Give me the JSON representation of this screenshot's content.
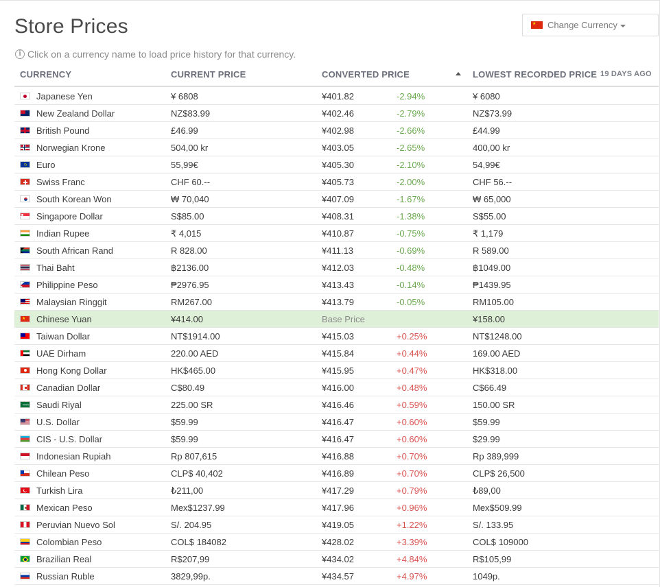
{
  "page": {
    "title": "Store Prices",
    "hint": "Click on a currency name to load price history for that currency.",
    "change_currency_label": "Change Currency",
    "info_icon": "info-icon",
    "caret_icon": "chevron-down-icon"
  },
  "table": {
    "headers": {
      "currency": "CURRENCY",
      "current_price": "CURRENT PRICE",
      "converted_price": "CONVERTED PRICE",
      "lowest_recorded": "LOWEST RECORDED PRICE",
      "days_ago": "19 DAYS AGO"
    },
    "rows": [
      {
        "name": "Japanese Yen",
        "flag": "jp",
        "price": "¥ 6808",
        "converted": "¥401.82",
        "pct": "-2.94%",
        "trend": "neg",
        "lowest": "¥ 6080"
      },
      {
        "name": "New Zealand Dollar",
        "flag": "nz",
        "price": "NZ$83.99",
        "converted": "¥402.46",
        "pct": "-2.79%",
        "trend": "neg",
        "lowest": "NZ$73.99"
      },
      {
        "name": "British Pound",
        "flag": "gb",
        "price": "£46.99",
        "converted": "¥402.98",
        "pct": "-2.66%",
        "trend": "neg",
        "lowest": "£44.99"
      },
      {
        "name": "Norwegian Krone",
        "flag": "no",
        "price": "504,00 kr",
        "converted": "¥403.05",
        "pct": "-2.65%",
        "trend": "neg",
        "lowest": "400,00 kr"
      },
      {
        "name": "Euro",
        "flag": "eu",
        "price": "55,99€",
        "converted": "¥405.30",
        "pct": "-2.10%",
        "trend": "neg",
        "lowest": "54,99€"
      },
      {
        "name": "Swiss Franc",
        "flag": "ch",
        "price": "CHF 60.--",
        "converted": "¥405.73",
        "pct": "-2.00%",
        "trend": "neg",
        "lowest": "CHF 56.--"
      },
      {
        "name": "South Korean Won",
        "flag": "kr",
        "price": "₩ 70,040",
        "converted": "¥407.09",
        "pct": "-1.67%",
        "trend": "neg",
        "lowest": "₩ 65,000"
      },
      {
        "name": "Singapore Dollar",
        "flag": "sg",
        "price": "S$85.00",
        "converted": "¥408.31",
        "pct": "-1.38%",
        "trend": "neg",
        "lowest": "S$55.00"
      },
      {
        "name": "Indian Rupee",
        "flag": "in",
        "price": "₹ 4,015",
        "converted": "¥410.87",
        "pct": "-0.75%",
        "trend": "neg",
        "lowest": "₹ 1,179"
      },
      {
        "name": "South African Rand",
        "flag": "za",
        "price": "R 828.00",
        "converted": "¥411.13",
        "pct": "-0.69%",
        "trend": "neg",
        "lowest": "R 589.00"
      },
      {
        "name": "Thai Baht",
        "flag": "th",
        "price": "฿2136.00",
        "converted": "¥412.03",
        "pct": "-0.48%",
        "trend": "neg",
        "lowest": "฿1049.00"
      },
      {
        "name": "Philippine Peso",
        "flag": "ph",
        "price": "₱2976.95",
        "converted": "¥413.43",
        "pct": "-0.14%",
        "trend": "neg",
        "lowest": "₱1439.95"
      },
      {
        "name": "Malaysian Ringgit",
        "flag": "my",
        "price": "RM267.00",
        "converted": "¥413.79",
        "pct": "-0.05%",
        "trend": "neg",
        "lowest": "RM105.00"
      },
      {
        "name": "Chinese Yuan",
        "flag": "cn",
        "price": "¥414.00",
        "converted": "Base Price",
        "pct": "",
        "trend": "base",
        "lowest": "¥158.00"
      },
      {
        "name": "Taiwan Dollar",
        "flag": "tw",
        "price": "NT$1914.00",
        "converted": "¥415.03",
        "pct": "+0.25%",
        "trend": "pos",
        "lowest": "NT$1248.00"
      },
      {
        "name": "UAE Dirham",
        "flag": "ae",
        "price": "220.00 AED",
        "converted": "¥415.84",
        "pct": "+0.44%",
        "trend": "pos",
        "lowest": "169.00 AED"
      },
      {
        "name": "Hong Kong Dollar",
        "flag": "hk",
        "price": "HK$465.00",
        "converted": "¥415.95",
        "pct": "+0.47%",
        "trend": "pos",
        "lowest": "HK$318.00"
      },
      {
        "name": "Canadian Dollar",
        "flag": "ca",
        "price": "C$80.49",
        "converted": "¥416.00",
        "pct": "+0.48%",
        "trend": "pos",
        "lowest": "C$66.49"
      },
      {
        "name": "Saudi Riyal",
        "flag": "sa",
        "price": "225.00 SR",
        "converted": "¥416.46",
        "pct": "+0.59%",
        "trend": "pos",
        "lowest": "150.00 SR"
      },
      {
        "name": "U.S. Dollar",
        "flag": "us",
        "price": "$59.99",
        "converted": "¥416.47",
        "pct": "+0.60%",
        "trend": "pos",
        "lowest": "$59.99"
      },
      {
        "name": "CIS - U.S. Dollar",
        "flag": "az",
        "price": "$59.99",
        "converted": "¥416.47",
        "pct": "+0.60%",
        "trend": "pos",
        "lowest": "$29.99"
      },
      {
        "name": "Indonesian Rupiah",
        "flag": "id",
        "price": "Rp 807,615",
        "converted": "¥416.88",
        "pct": "+0.70%",
        "trend": "pos",
        "lowest": "Rp 389,999"
      },
      {
        "name": "Chilean Peso",
        "flag": "cl",
        "price": "CLP$ 40,402",
        "converted": "¥416.89",
        "pct": "+0.70%",
        "trend": "pos",
        "lowest": "CLP$ 26,500"
      },
      {
        "name": "Turkish Lira",
        "flag": "tr",
        "price": "₺211,00",
        "converted": "¥417.29",
        "pct": "+0.79%",
        "trend": "pos",
        "lowest": "₺89,00"
      },
      {
        "name": "Mexican Peso",
        "flag": "mx",
        "price": "Mex$1237.99",
        "converted": "¥417.96",
        "pct": "+0.96%",
        "trend": "pos",
        "lowest": "Mex$509.99"
      },
      {
        "name": "Peruvian Nuevo Sol",
        "flag": "pe",
        "price": "S/. 204.95",
        "converted": "¥419.05",
        "pct": "+1.22%",
        "trend": "pos",
        "lowest": "S/. 133.95"
      },
      {
        "name": "Colombian Peso",
        "flag": "co",
        "price": "COL$ 184082",
        "converted": "¥428.02",
        "pct": "+3.39%",
        "trend": "pos",
        "lowest": "COL$ 109000"
      },
      {
        "name": "Brazilian Real",
        "flag": "br",
        "price": "R$207,99",
        "converted": "¥434.02",
        "pct": "+4.84%",
        "trend": "pos",
        "lowest": "R$105,99"
      },
      {
        "name": "Russian Ruble",
        "flag": "ru",
        "price": "3829,99p.",
        "converted": "¥434.57",
        "pct": "+4.97%",
        "trend": "pos",
        "lowest": "1049p."
      }
    ]
  },
  "colors": {
    "negative": "#6aa84f",
    "positive": "#d9534f",
    "base_row": "#dff0d8"
  }
}
